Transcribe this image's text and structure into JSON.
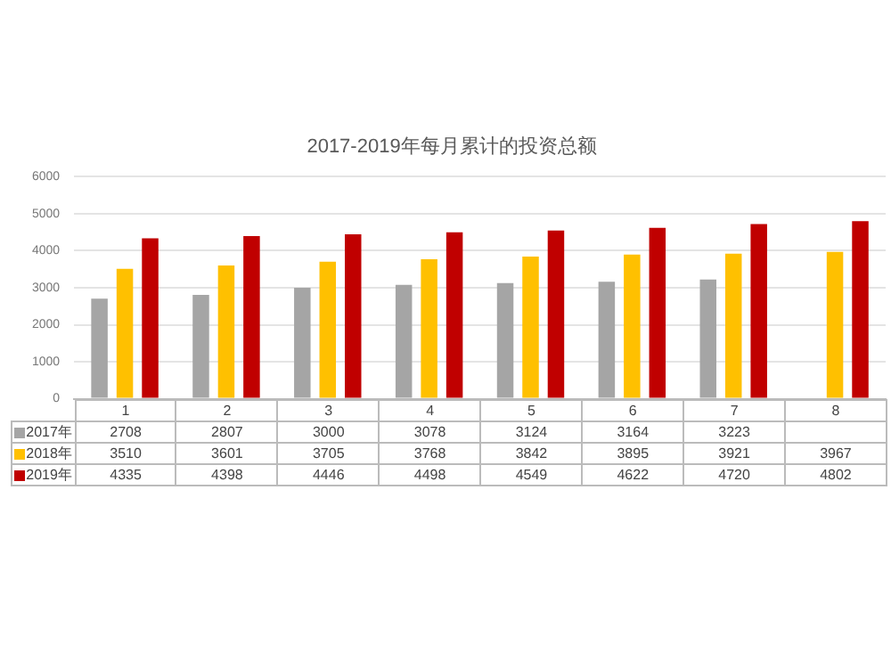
{
  "chart_data": {
    "type": "bar",
    "title": "2017-2019年每月累计的投资总额",
    "categories": [
      "1",
      "2",
      "3",
      "4",
      "5",
      "6",
      "7",
      "8"
    ],
    "series": [
      {
        "name": "2017年",
        "color": "#a5a5a5",
        "values": [
          2708,
          2807,
          3000,
          3078,
          3124,
          3164,
          3223,
          null
        ]
      },
      {
        "name": "2018年",
        "color": "#ffc000",
        "values": [
          3510,
          3601,
          3705,
          3768,
          3842,
          3895,
          3921,
          3967
        ]
      },
      {
        "name": "2019年",
        "color": "#c00000",
        "values": [
          4335,
          4398,
          4446,
          4498,
          4549,
          4622,
          4720,
          4802
        ]
      }
    ],
    "ylim": [
      0,
      6000
    ],
    "yticks": [
      0,
      1000,
      2000,
      3000,
      4000,
      5000,
      6000
    ],
    "grid": "y",
    "data_labels": true,
    "legend": "bottom left"
  }
}
